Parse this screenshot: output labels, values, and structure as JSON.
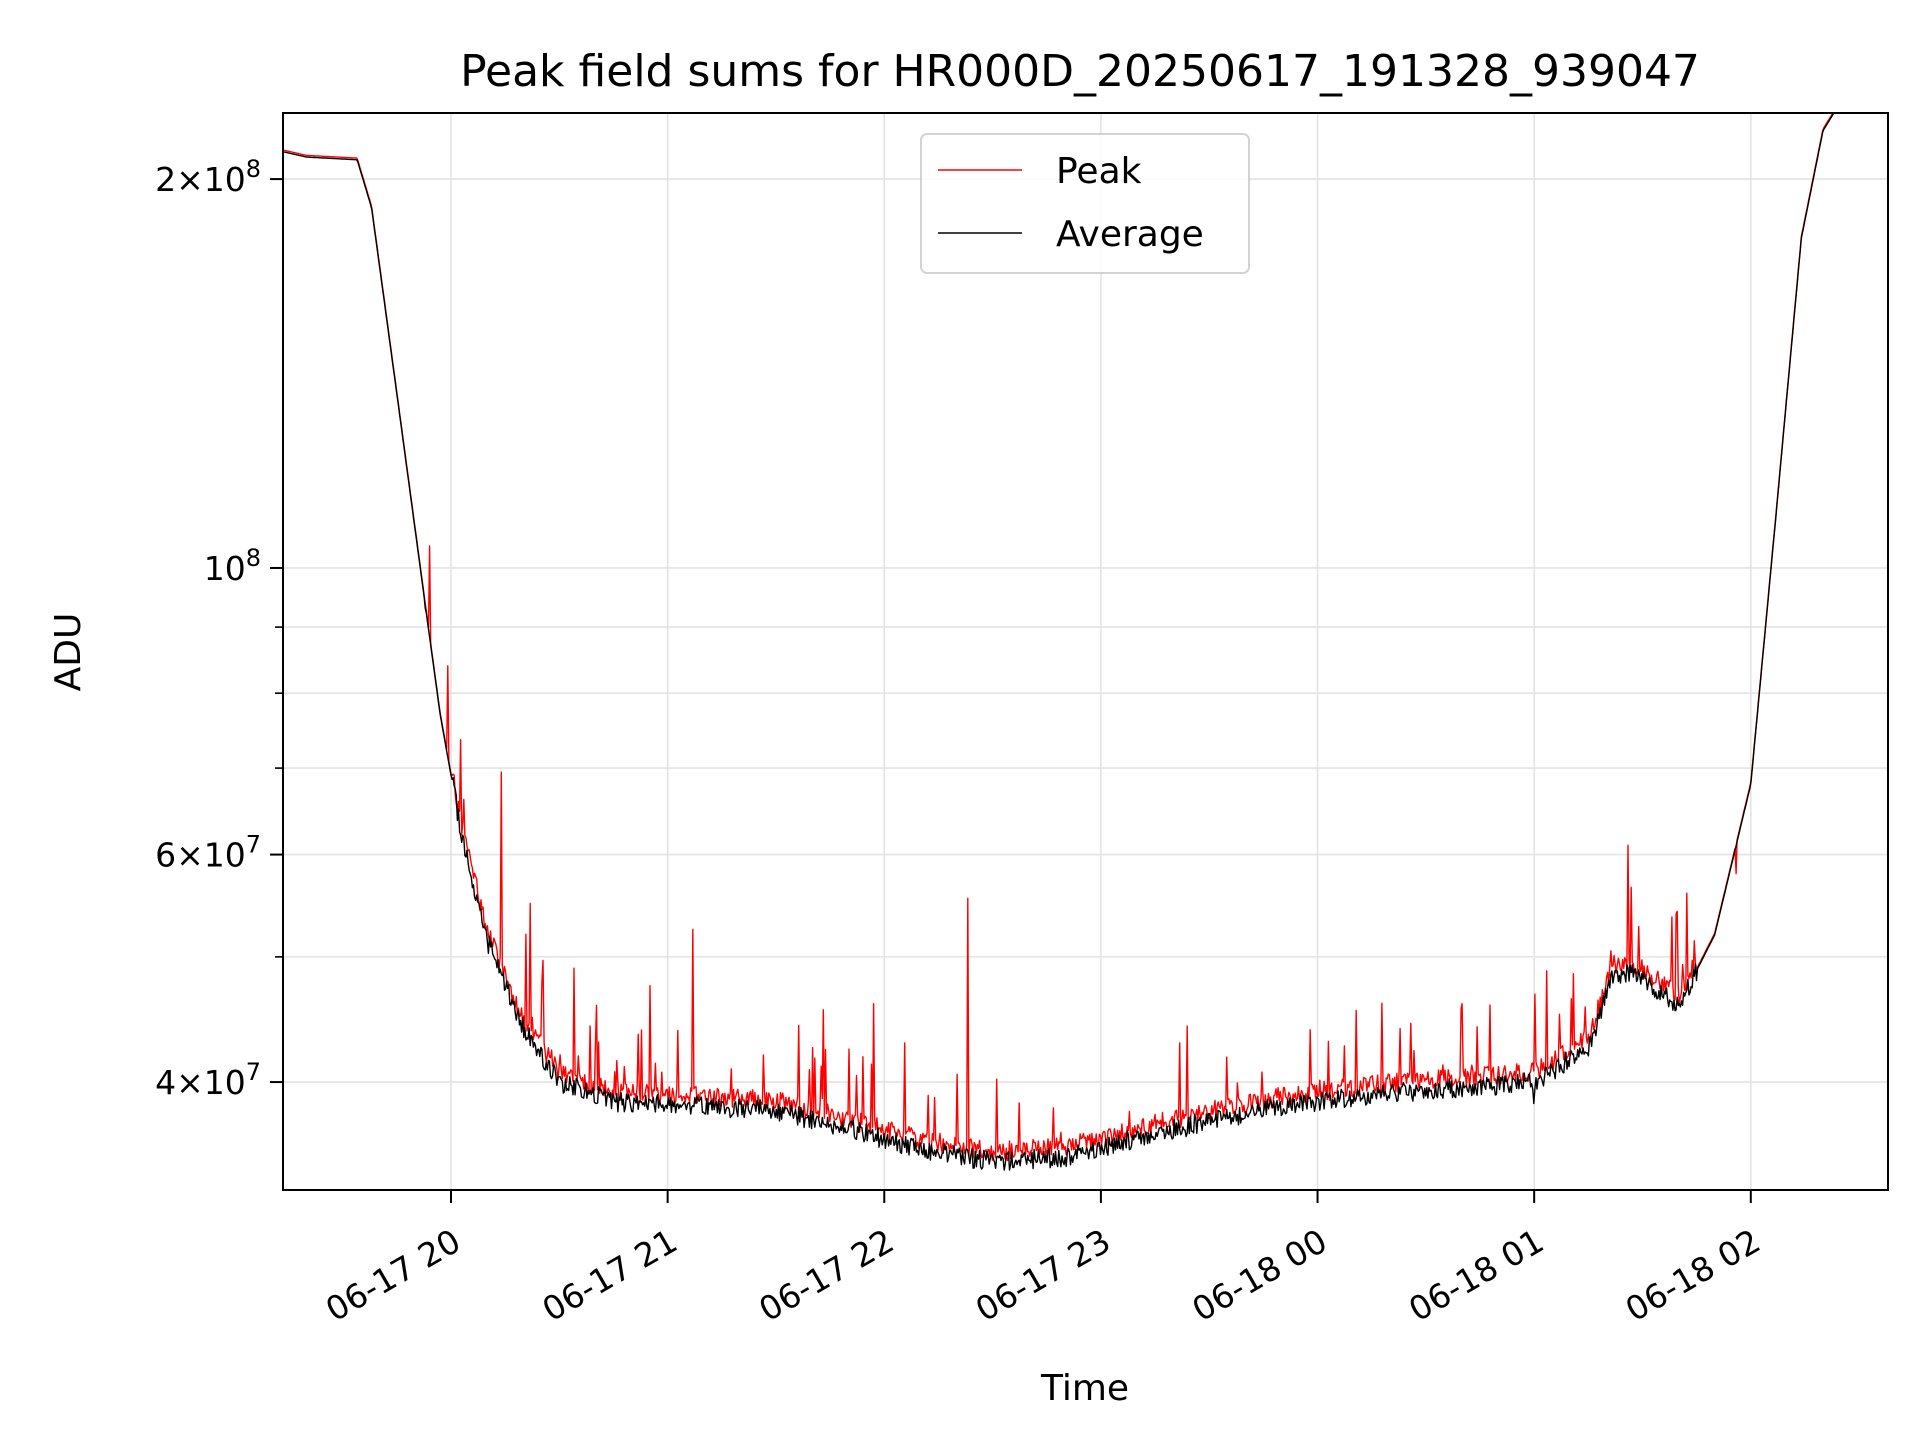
{
  "chart_data": {
    "type": "line",
    "title": "Peak field sums for HR000D_20250617_191328_939047",
    "xlabel": "Time",
    "ylabel": "ADU",
    "x_axis": {
      "kind": "datetime",
      "range": [
        "2025-06-17T19:13:28",
        "2025-06-18T02:38:00"
      ],
      "tick_values": [
        "2025-06-17T20:00",
        "2025-06-17T21:00",
        "2025-06-17T22:00",
        "2025-06-17T23:00",
        "2025-06-18T00:00",
        "2025-06-18T01:00",
        "2025-06-18T02:00"
      ],
      "tick_labels": [
        "06-17 20",
        "06-17 21",
        "06-17 22",
        "06-17 23",
        "06-18 00",
        "06-18 01",
        "06-18 02"
      ]
    },
    "y_axis": {
      "scale": "log",
      "range": [
        33000000,
        225000000
      ],
      "major_ticks": [
        {
          "value": 40000000,
          "mant": "4",
          "exp": "7"
        },
        {
          "value": 60000000,
          "mant": "6",
          "exp": "7"
        },
        {
          "value": 100000000,
          "mant": "",
          "exp": "8"
        },
        {
          "value": 200000000,
          "mant": "2",
          "exp": "8"
        }
      ],
      "minor_ticks": [
        30000000,
        50000000,
        70000000,
        80000000,
        90000000
      ]
    },
    "grid": true,
    "legend": {
      "placement": "upper-center"
    },
    "series": [
      {
        "name": "Peak",
        "color": "#ff0000"
      },
      {
        "name": "Average",
        "color": "#000000"
      }
    ],
    "average_trend": [
      [
        "2025-06-17T19:13:28",
        210000000
      ],
      [
        "2025-06-17T19:20:00",
        208000000
      ],
      [
        "2025-06-17T19:34:00",
        207000000
      ],
      [
        "2025-06-17T19:38:00",
        190000000
      ],
      [
        "2025-06-17T19:46:00",
        130000000
      ],
      [
        "2025-06-17T19:53:00",
        93000000
      ],
      [
        "2025-06-17T19:57:00",
        77000000
      ],
      [
        "2025-06-17T20:03:00",
        62000000
      ],
      [
        "2025-06-17T20:10:00",
        51500000
      ],
      [
        "2025-06-17T20:20:00",
        44000000
      ],
      [
        "2025-06-17T20:30:00",
        40000000
      ],
      [
        "2025-06-17T20:45:00",
        38600000
      ],
      [
        "2025-06-17T21:00:00",
        38500000
      ],
      [
        "2025-06-17T21:30:00",
        38000000
      ],
      [
        "2025-06-17T21:50:00",
        36800000
      ],
      [
        "2025-06-17T22:10:00",
        35500000
      ],
      [
        "2025-06-17T22:30:00",
        34700000
      ],
      [
        "2025-06-17T22:50:00",
        35000000
      ],
      [
        "2025-06-17T23:10:00",
        36200000
      ],
      [
        "2025-06-17T23:30:00",
        37300000
      ],
      [
        "2025-06-17T23:50:00",
        38300000
      ],
      [
        "2025-06-18T00:15:00",
        39100000
      ],
      [
        "2025-06-18T00:40:00",
        39600000
      ],
      [
        "2025-06-18T01:00:00",
        40000000
      ],
      [
        "2025-06-18T01:15:00",
        42500000
      ],
      [
        "2025-06-18T01:22:00",
        48500000
      ],
      [
        "2025-06-18T01:28:00",
        48500000
      ],
      [
        "2025-06-18T01:40:00",
        45800000
      ],
      [
        "2025-06-18T01:50:00",
        52000000
      ],
      [
        "2025-06-18T02:00:00",
        68000000
      ],
      [
        "2025-06-18T02:07:00",
        110000000
      ],
      [
        "2025-06-18T02:14:00",
        180000000
      ],
      [
        "2025-06-18T02:20:00",
        218000000
      ],
      [
        "2025-06-18T02:23:00",
        225000000
      ],
      [
        "2025-06-18T02:38:00",
        225000000
      ]
    ],
    "peak_spikes": [
      [
        "2025-06-17T19:54:00",
        104000000
      ],
      [
        "2025-06-17T19:59:00",
        84000000
      ],
      [
        "2025-06-17T20:14:00",
        69500000
      ],
      [
        "2025-06-17T20:22:00",
        55000000
      ],
      [
        "2025-06-17T20:34:00",
        49000000
      ],
      [
        "2025-06-17T20:55:00",
        47500000
      ],
      [
        "2025-06-17T21:07:00",
        52500000
      ],
      [
        "2025-06-17T21:43:00",
        45500000
      ],
      [
        "2025-06-17T21:57:00",
        46000000
      ],
      [
        "2025-06-17T22:23:00",
        55500000
      ],
      [
        "2025-06-18T00:03:00",
        43000000
      ],
      [
        "2025-06-18T00:23:00",
        44000000
      ],
      [
        "2025-06-18T00:40:00",
        46000000
      ],
      [
        "2025-06-18T01:26:00",
        61000000
      ],
      [
        "2025-06-18T01:56:00",
        58000000
      ]
    ],
    "average_dips": [
      [
        "2025-06-17T19:53:00",
        93000000
      ],
      [
        "2025-06-18T01:00:00",
        38500000
      ]
    ]
  }
}
